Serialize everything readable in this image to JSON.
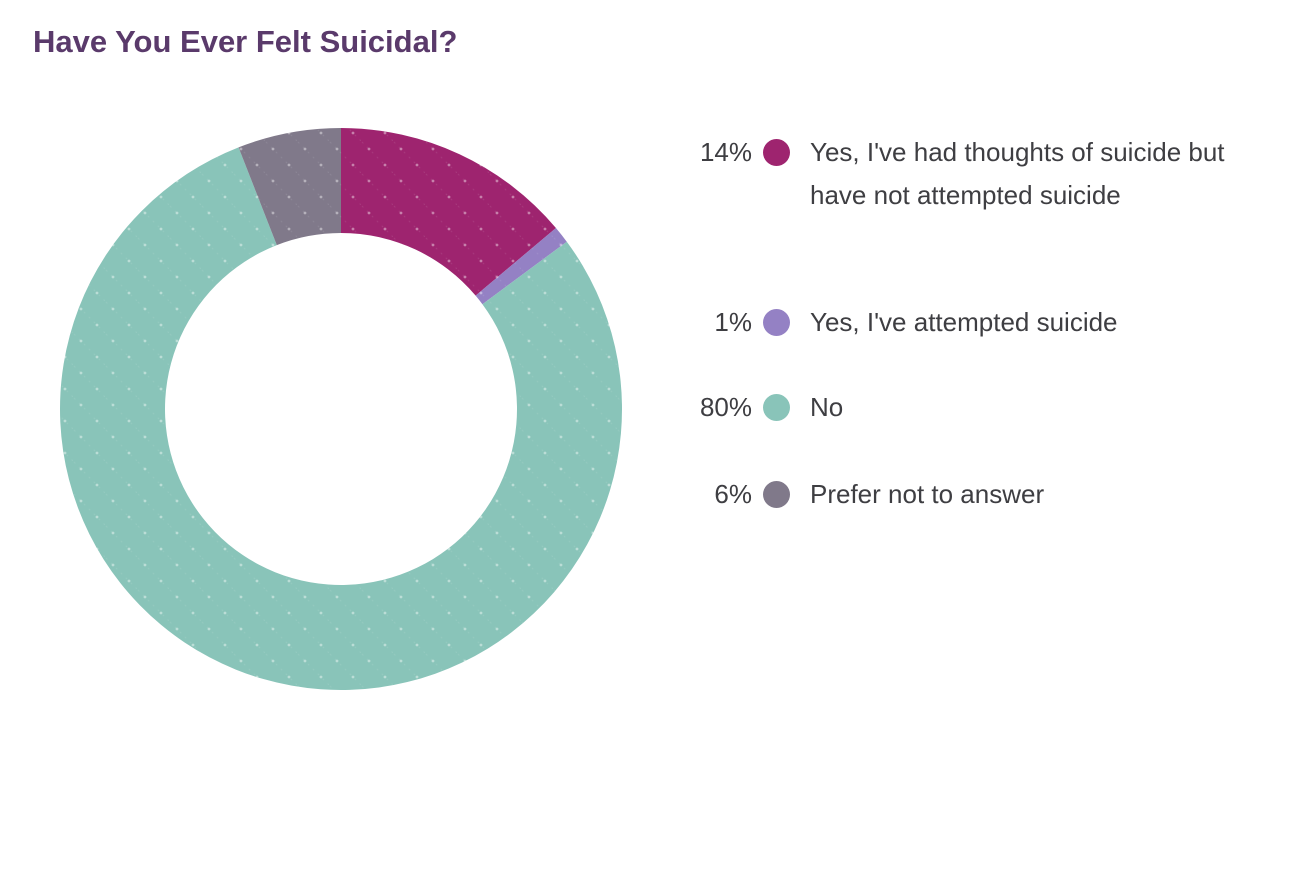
{
  "title": {
    "text": "Have You Ever Felt Suicidal?",
    "color": "#5a3a6b"
  },
  "colors": {
    "background": "#ffffff",
    "legend_text": "#3e3e42"
  },
  "chart_data": {
    "type": "pie",
    "variant": "donut",
    "title": "Have You Ever Felt Suicidal?",
    "start_angle_deg": 0,
    "direction": "clockwise",
    "inner_radius_ratio": 0.63,
    "legend_position": "right",
    "texture": "subtle-white-dots-with-faint-diagonal-lines",
    "series": [
      {
        "label": "Yes, I've had thoughts of suicide but have not attempted suicide",
        "value": 14,
        "pct_label": "14%",
        "color": "#9e246f"
      },
      {
        "label": "Yes, I've attempted suicide",
        "value": 1,
        "pct_label": "1%",
        "color": "#9481c4"
      },
      {
        "label": "No",
        "value": 80,
        "pct_label": "80%",
        "color": "#89c4b9"
      },
      {
        "label": "Prefer not to answer",
        "value": 6,
        "pct_label": "6%",
        "color": "#80798a"
      }
    ]
  }
}
